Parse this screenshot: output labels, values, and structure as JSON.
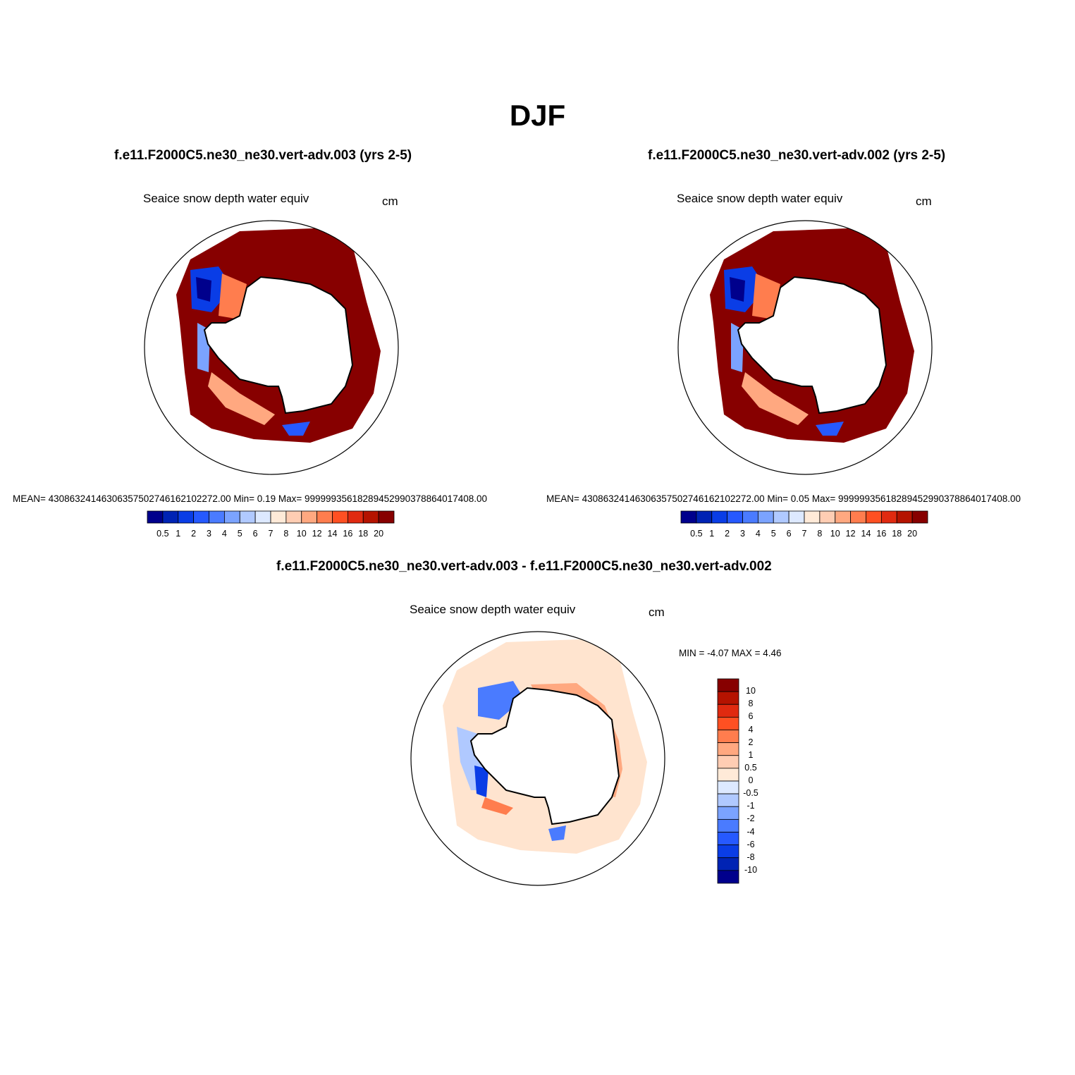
{
  "figure": {
    "title": "DJF"
  },
  "panels": [
    {
      "case_title": "f.e11.F2000C5.ne30_ne30.vert-adv.003 (yrs 2-5)",
      "variable": "Seaice snow depth water equiv",
      "units": "cm",
      "stats": "MEAN= 430863241463063575027461621022 72.00  Min=    0.19  Max= 9999993561828945299037886 4017408.00"
    },
    {
      "case_title": "f.e11.F2000C5.ne30_ne30.vert-adv.002 (yrs 2-5)",
      "variable": "Seaice snow depth water equiv",
      "units": "cm",
      "stats": "MEAN= 430863241463063575027461621022 72.00  Min=    0.05  Max= 9999993561828945299037886 4017408.00"
    },
    {
      "case_title": "f.e11.F2000C5.ne30_ne30.vert-adv.003 - f.e11.F2000C5.ne30_ne30.vert-adv.002",
      "variable": "Seaice snow depth water equiv",
      "units": "cm",
      "stats": "MIN =  -4.07 MAX =   4.46"
    }
  ],
  "colorbar_main": {
    "labels": [
      "0.5",
      "1",
      "2",
      "3",
      "4",
      "5",
      "6",
      "7",
      "8",
      "10",
      "12",
      "14",
      "16",
      "18",
      "20"
    ],
    "colors": [
      "#00008c",
      "#0023b4",
      "#0a3de6",
      "#2659ff",
      "#4a7bff",
      "#7ba3ff",
      "#b0c9ff",
      "#dde9ff",
      "#ffead8",
      "#ffcdb3",
      "#ffa880",
      "#ff7d4e",
      "#ff5022",
      "#e02a10",
      "#b51300",
      "#870000"
    ]
  },
  "colorbar_diff": {
    "labels": [
      "10",
      "8",
      "6",
      "4",
      "2",
      "1",
      "0.5",
      "0",
      "-0.5",
      "-1",
      "-2",
      "-4",
      "-6",
      "-8",
      "-10"
    ],
    "colors": [
      "#870000",
      "#b51300",
      "#e02a10",
      "#ff5022",
      "#ff7d4e",
      "#ffa880",
      "#ffcdb3",
      "#ffead8",
      "#dde9ff",
      "#b0c9ff",
      "#7ba3ff",
      "#4a7bff",
      "#2659ff",
      "#0a3de6",
      "#0023b4",
      "#00008c"
    ]
  }
}
